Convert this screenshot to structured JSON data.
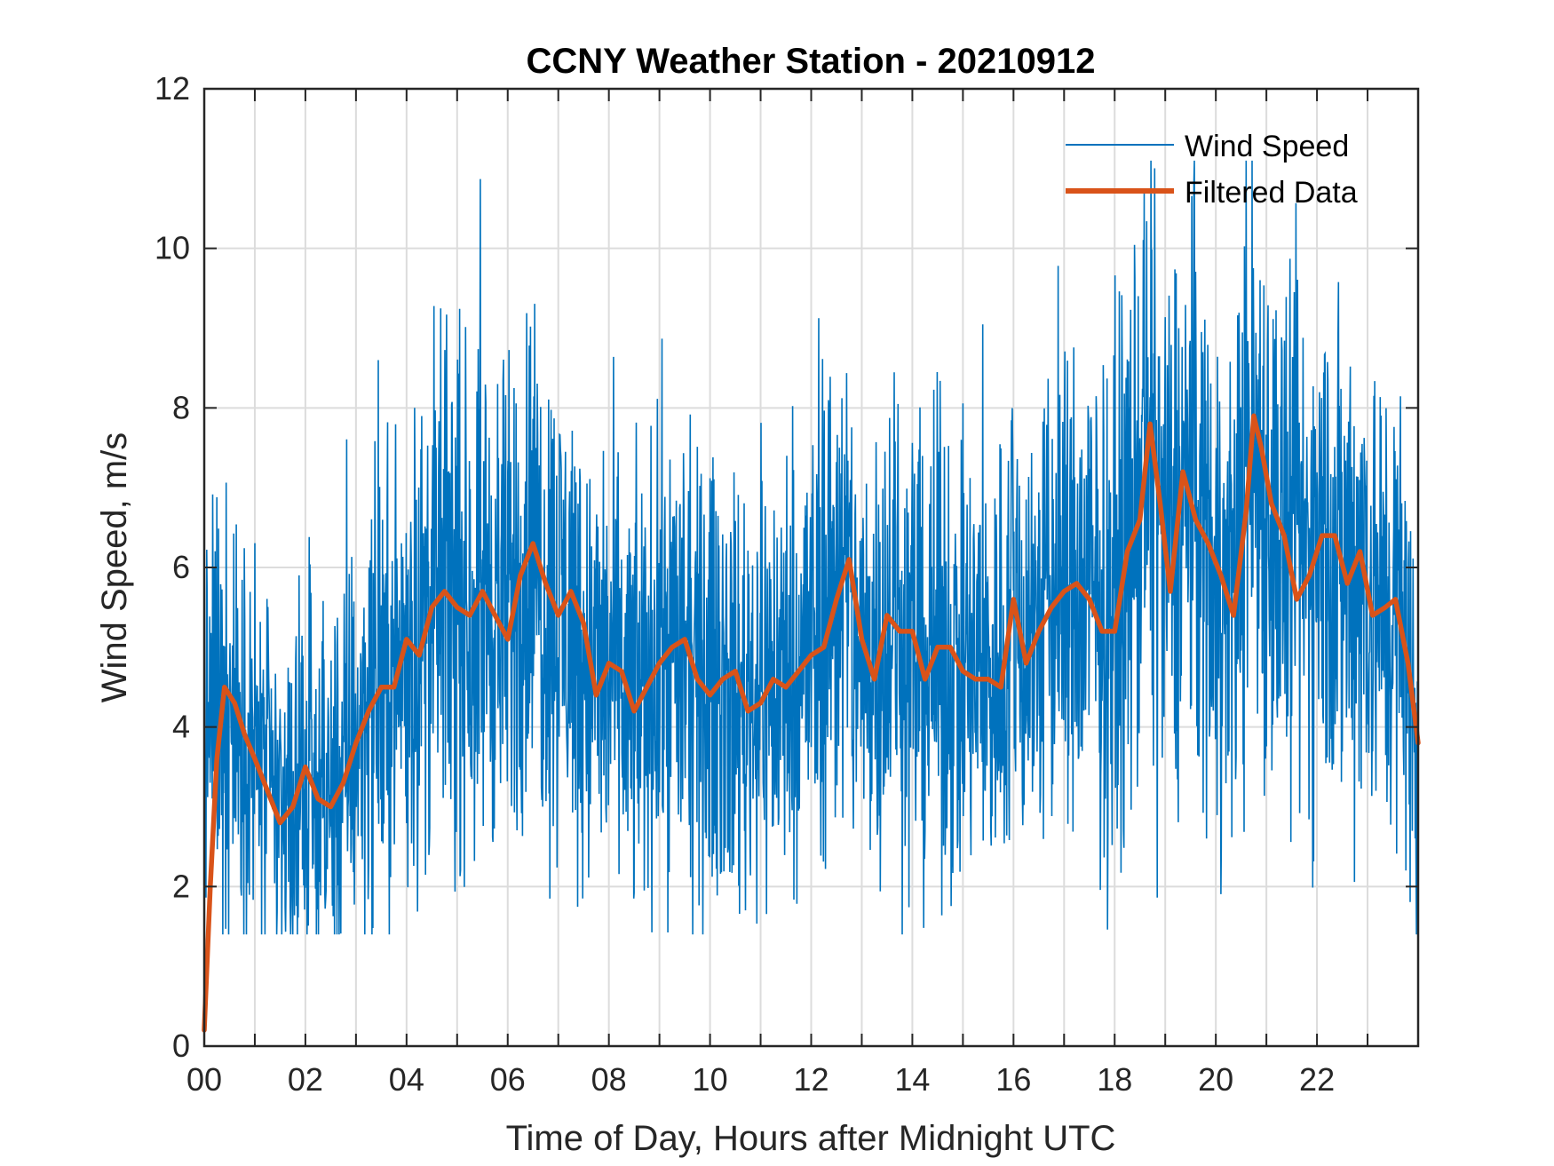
{
  "chart_data": {
    "type": "line",
    "title": "CCNY Weather Station - 20210912",
    "xlabel": "Time of Day, Hours after Midnight UTC",
    "ylabel": "Wind Speed, m/s",
    "xlim": [
      0,
      24
    ],
    "ylim": [
      0,
      12
    ],
    "grid": true,
    "legend_position": "top-right",
    "x_ticks": [
      0,
      2,
      4,
      6,
      8,
      10,
      12,
      14,
      16,
      18,
      20,
      22
    ],
    "x_tick_labels": [
      "00",
      "02",
      "04",
      "06",
      "08",
      "10",
      "12",
      "14",
      "16",
      "18",
      "20",
      "22"
    ],
    "x_minor_ticks": [
      1,
      3,
      5,
      7,
      9,
      11,
      13,
      15,
      17,
      19,
      21,
      23
    ],
    "y_ticks": [
      0,
      2,
      4,
      6,
      8,
      10,
      12
    ],
    "y_tick_labels": [
      "0",
      "2",
      "4",
      "6",
      "8",
      "10",
      "12"
    ],
    "series": [
      {
        "name": "Wind Speed",
        "color": "#0072BD",
        "style": "thin",
        "x": [
          0.0,
          0.25,
          0.5,
          0.75,
          1.0,
          1.25,
          1.5,
          1.75,
          2.0,
          2.25,
          2.5,
          2.75,
          3.0,
          3.25,
          3.5,
          3.75,
          4.0,
          4.25,
          4.5,
          4.75,
          5.0,
          5.25,
          5.5,
          5.75,
          6.0,
          6.25,
          6.5,
          6.75,
          7.0,
          7.25,
          7.5,
          7.75,
          8.0,
          8.25,
          8.5,
          8.75,
          9.0,
          9.25,
          9.5,
          9.75,
          10.0,
          10.25,
          10.5,
          10.75,
          11.0,
          11.25,
          11.5,
          11.75,
          12.0,
          12.25,
          12.5,
          12.75,
          13.0,
          13.25,
          13.5,
          13.75,
          14.0,
          14.25,
          14.5,
          14.75,
          15.0,
          15.25,
          15.5,
          15.75,
          16.0,
          16.25,
          16.5,
          16.75,
          17.0,
          17.25,
          17.5,
          17.75,
          18.0,
          18.25,
          18.5,
          18.75,
          19.0,
          19.25,
          19.5,
          19.75,
          20.0,
          20.25,
          20.5,
          20.75,
          21.0,
          21.25,
          21.5,
          21.75,
          22.0,
          22.25,
          22.5,
          22.75,
          23.0,
          23.25,
          23.5,
          23.75,
          24.0
        ],
        "values": [
          3.9,
          4.4,
          4.2,
          3.8,
          3.7,
          3.2,
          2.9,
          3.0,
          3.4,
          3.1,
          3.0,
          3.4,
          3.9,
          4.3,
          4.5,
          4.6,
          5.0,
          5.1,
          5.5,
          5.7,
          5.6,
          5.4,
          5.7,
          5.5,
          5.4,
          6.0,
          6.2,
          5.6,
          5.5,
          5.4,
          4.9,
          4.6,
          4.8,
          4.5,
          4.3,
          4.6,
          4.9,
          5.1,
          4.7,
          4.4,
          4.6,
          4.7,
          4.3,
          4.4,
          4.6,
          4.5,
          4.7,
          4.9,
          5.0,
          5.4,
          6.0,
          5.6,
          4.7,
          5.2,
          5.4,
          5.2,
          5.0,
          4.7,
          5.0,
          4.8,
          4.6,
          4.7,
          4.6,
          4.8,
          5.5,
          5.1,
          5.3,
          5.6,
          5.8,
          5.6,
          5.7,
          5.4,
          5.5,
          6.3,
          6.9,
          7.4,
          6.1,
          6.7,
          7.1,
          6.6,
          6.0,
          5.6,
          6.7,
          7.6,
          6.9,
          6.4,
          5.9,
          6.1,
          6.3,
          6.4,
          5.9,
          6.2,
          6.0,
          5.4,
          5.6,
          5.0,
          3.6
        ]
      },
      {
        "name": "Filtered Data",
        "color": "#D95319",
        "style": "thick",
        "x": [
          0.0,
          0.12,
          0.25,
          0.4,
          0.6,
          0.8,
          1.0,
          1.25,
          1.5,
          1.75,
          2.0,
          2.25,
          2.5,
          2.75,
          3.0,
          3.25,
          3.5,
          3.75,
          4.0,
          4.25,
          4.5,
          4.75,
          5.0,
          5.25,
          5.5,
          5.75,
          6.0,
          6.25,
          6.5,
          6.75,
          7.0,
          7.25,
          7.5,
          7.75,
          8.0,
          8.25,
          8.5,
          8.75,
          9.0,
          9.25,
          9.5,
          9.75,
          10.0,
          10.25,
          10.5,
          10.75,
          11.0,
          11.25,
          11.5,
          11.75,
          12.0,
          12.25,
          12.5,
          12.75,
          13.0,
          13.25,
          13.5,
          13.75,
          14.0,
          14.25,
          14.5,
          14.75,
          15.0,
          15.25,
          15.5,
          15.75,
          16.0,
          16.25,
          16.5,
          16.75,
          17.0,
          17.25,
          17.5,
          17.75,
          18.0,
          18.25,
          18.5,
          18.7,
          18.9,
          19.1,
          19.35,
          19.6,
          19.85,
          20.1,
          20.35,
          20.6,
          20.75,
          20.9,
          21.1,
          21.35,
          21.6,
          21.85,
          22.1,
          22.35,
          22.6,
          22.85,
          23.1,
          23.35,
          23.55,
          23.8,
          24.0
        ],
        "values": [
          0.2,
          2.0,
          3.6,
          4.5,
          4.3,
          3.9,
          3.6,
          3.2,
          2.8,
          3.0,
          3.5,
          3.1,
          3.0,
          3.3,
          3.8,
          4.2,
          4.5,
          4.5,
          5.1,
          4.9,
          5.5,
          5.7,
          5.5,
          5.4,
          5.7,
          5.4,
          5.1,
          5.9,
          6.3,
          5.8,
          5.4,
          5.7,
          5.3,
          4.4,
          4.8,
          4.7,
          4.2,
          4.5,
          4.8,
          5.0,
          5.1,
          4.6,
          4.4,
          4.6,
          4.7,
          4.2,
          4.3,
          4.6,
          4.5,
          4.7,
          4.9,
          5.0,
          5.6,
          6.1,
          5.1,
          4.6,
          5.4,
          5.2,
          5.2,
          4.6,
          5.0,
          5.0,
          4.7,
          4.6,
          4.6,
          4.5,
          5.6,
          4.8,
          5.2,
          5.5,
          5.7,
          5.8,
          5.6,
          5.2,
          5.2,
          6.2,
          6.6,
          7.8,
          6.8,
          5.7,
          7.2,
          6.6,
          6.3,
          5.9,
          5.4,
          6.7,
          7.9,
          7.5,
          6.8,
          6.4,
          5.6,
          5.9,
          6.4,
          6.4,
          5.8,
          6.2,
          5.4,
          5.5,
          5.6,
          4.8,
          3.8
        ]
      }
    ]
  }
}
